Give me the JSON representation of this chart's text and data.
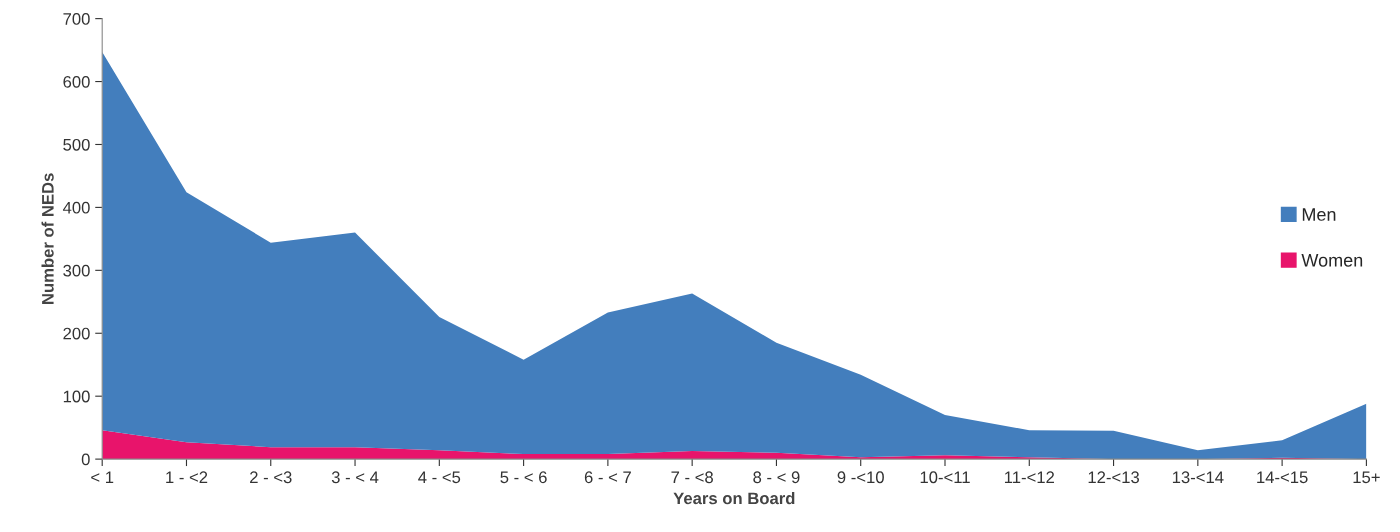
{
  "chart_data": {
    "type": "area",
    "stacked": true,
    "xlabel": "Years on Board",
    "ylabel": "Number of NEDs",
    "categories": [
      "< 1",
      "1 - <2",
      "2 - <3",
      "3 - < 4",
      "4 - <5",
      "5 - < 6",
      "6 - < 7",
      "7 - <8",
      "8 - < 9",
      "9 -<10",
      "10-<11",
      "11-<12",
      "12-<13",
      "13-<14",
      "14-<15",
      "15+"
    ],
    "series": [
      {
        "name": "Women",
        "color": "#e8146b",
        "values": [
          46,
          27,
          19,
          19,
          14,
          8,
          8,
          13,
          10,
          3,
          6,
          3,
          0,
          0,
          2,
          0
        ]
      },
      {
        "name": "Men",
        "color": "#437ebd",
        "values": [
          601,
          397,
          325,
          341,
          212,
          150,
          225,
          250,
          175,
          131,
          64,
          43,
          45,
          14,
          28,
          88
        ]
      }
    ],
    "ylim": [
      0,
      700
    ],
    "yticks": [
      0,
      100,
      200,
      300,
      400,
      500,
      600,
      700
    ],
    "grid": false,
    "legend": "right"
  }
}
